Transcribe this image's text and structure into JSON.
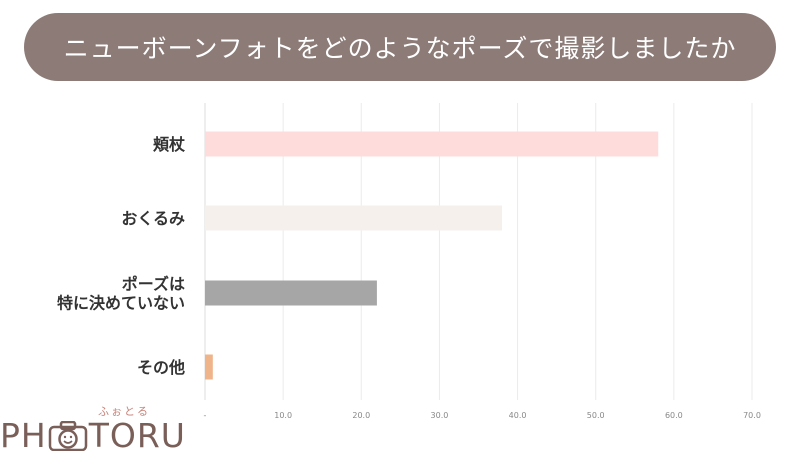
{
  "title": "ニューボーンフォトをどのようなポーズで撮影しましたか",
  "chart_data": {
    "type": "bar",
    "orientation": "horizontal",
    "title": "ニューボーンフォトをどのようなポーズで撮影しましたか",
    "categories": [
      [
        "頬杖"
      ],
      [
        "おくるみ"
      ],
      [
        "ポーズは",
        "特に決めていない"
      ],
      [
        "その他"
      ]
    ],
    "values": [
      58,
      38,
      22,
      1
    ],
    "colors": [
      "#ffdcdc",
      "#f6f0ec",
      "#a6a6a6",
      "#f0b48a"
    ],
    "xlim": [
      0,
      70
    ],
    "xticks": [
      0,
      10,
      20,
      30,
      40,
      50,
      60,
      70
    ],
    "xtick_labels": [
      "-",
      "10.0",
      "20.0",
      "30.0",
      "40.0",
      "50.0",
      "60.0",
      "70.0"
    ],
    "grid": true,
    "xlabel": "",
    "ylabel": ""
  },
  "logo": {
    "ruby": "ふぉとる",
    "left": "PH",
    "right": "TORU",
    "icon": "camera-smile-icon"
  }
}
